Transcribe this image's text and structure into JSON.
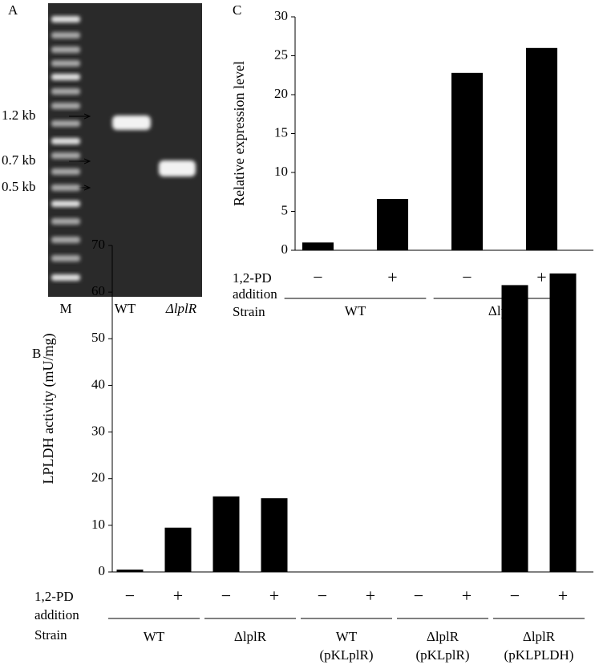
{
  "gel": {
    "panel": "A",
    "lanes": [
      "M",
      "WT",
      "ΔlplR"
    ],
    "markers": [
      "1.2 kb",
      "0.7 kb",
      "0.5 kb"
    ]
  },
  "chart_data": [
    {
      "panel": "C",
      "type": "bar",
      "ylabel": "Relative expression level",
      "categories": [
        "−",
        "+",
        "−",
        "+"
      ],
      "values": [
        1,
        6.6,
        22.8,
        26
      ],
      "groups": [
        [
          "WT"
        ],
        [
          "ΔlplR"
        ]
      ],
      "row_labels": [
        "1,2-PD",
        "addition",
        "Strain"
      ],
      "ylim": [
        0,
        30
      ],
      "yticks": [
        0,
        5,
        10,
        15,
        20,
        25,
        30
      ],
      "color": "#000000"
    },
    {
      "panel": "B",
      "type": "bar",
      "ylabel": "LPLDH activity (mU/mg)",
      "categories": [
        "−",
        "+",
        "−",
        "+",
        "−",
        "+",
        "−",
        "+",
        "−",
        "+"
      ],
      "values": [
        0.5,
        9.5,
        16.2,
        15.8,
        0,
        0,
        0,
        0,
        61.5,
        64
      ],
      "groups": [
        [
          "WT"
        ],
        [
          "ΔlplR"
        ],
        [
          "WT",
          "(pKLplR)"
        ],
        [
          "ΔlplR",
          "(pKLplR)"
        ],
        [
          "ΔlplR",
          "(pKLPLDH)"
        ]
      ],
      "row_labels": [
        "1,2-PD",
        "addition",
        "Strain"
      ],
      "ylim": [
        0,
        70
      ],
      "yticks": [
        0,
        10,
        20,
        30,
        40,
        50,
        60,
        70
      ],
      "color": "#000000"
    }
  ]
}
